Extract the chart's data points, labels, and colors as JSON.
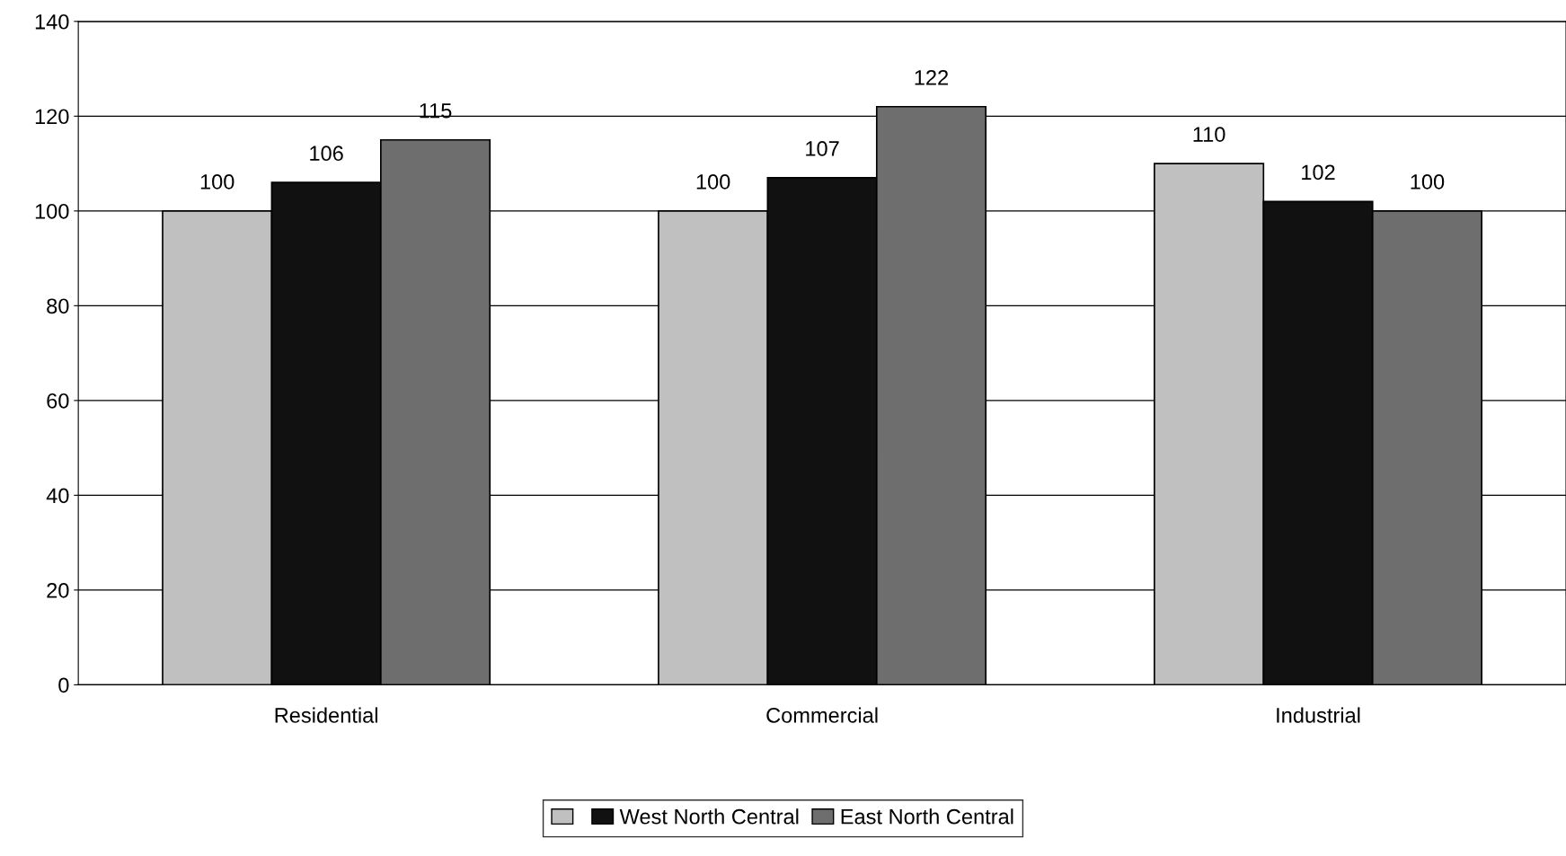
{
  "chart_data": {
    "type": "bar",
    "categories": [
      "Residential",
      "Commercial",
      "Industrial"
    ],
    "series": [
      {
        "color": "#c0c0c0",
        "values": [
          100,
          100,
          110
        ]
      },
      {
        "name": "West North Central",
        "color": "#111111",
        "values": [
          106,
          107,
          102
        ]
      },
      {
        "name": "East North Central",
        "color": "#6e6e6e",
        "values": [
          115,
          122,
          100
        ]
      }
    ],
    "ylim": [
      0,
      140
    ],
    "yticks": [
      0,
      20,
      40,
      60,
      80,
      100,
      120,
      140
    ],
    "grid": "y",
    "legend": "bottom",
    "data_labels": true
  }
}
